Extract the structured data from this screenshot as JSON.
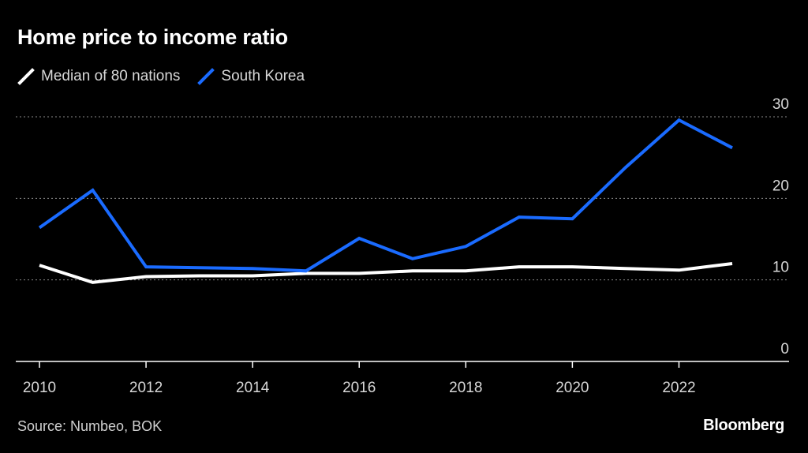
{
  "header": {
    "title": "Home price to income ratio"
  },
  "footer": {
    "source": "Source: Numbeo, BOK",
    "brand": "Bloomberg"
  },
  "colors": {
    "background": "#000000",
    "median": "#ffffff",
    "korea": "#1a6bff",
    "grid": "#8a8a8a",
    "axis": "#ffffff",
    "label": "#d8d8d8"
  },
  "chart_data": {
    "type": "line",
    "title": "Home price to income ratio",
    "xlabel": "",
    "ylabel": "",
    "xlim": [
      2010,
      2024.2
    ],
    "ylim": [
      0,
      30
    ],
    "yticks": [
      0,
      10,
      20,
      30
    ],
    "ytick_labels": [
      "0",
      "10",
      "20",
      "30"
    ],
    "xticks": [
      2010,
      2012,
      2014,
      2016,
      2018,
      2020,
      2022
    ],
    "xtick_labels": [
      "2010",
      "2012",
      "2014",
      "2016",
      "2018",
      "2020",
      "2022"
    ],
    "grid": true,
    "legend_position": "top-left",
    "series": [
      {
        "name": "Median of 80 nations",
        "color": "#ffffff",
        "x": [
          2010,
          2011,
          2012,
          2013,
          2014,
          2015,
          2016,
          2017,
          2018,
          2019,
          2020,
          2021,
          2022,
          2023
        ],
        "values": [
          11.8,
          9.7,
          10.4,
          10.5,
          10.5,
          10.8,
          10.8,
          11.1,
          11.1,
          11.6,
          11.6,
          11.4,
          11.2,
          12.0
        ]
      },
      {
        "name": "South Korea",
        "color": "#1a6bff",
        "x": [
          2010,
          2011,
          2012,
          2013,
          2014,
          2015,
          2016,
          2017,
          2018,
          2019,
          2020,
          2021,
          2022,
          2023
        ],
        "values": [
          16.4,
          21.0,
          11.6,
          11.5,
          11.4,
          11.1,
          15.1,
          12.6,
          14.1,
          17.7,
          17.5,
          23.8,
          29.6,
          26.2
        ]
      }
    ]
  }
}
